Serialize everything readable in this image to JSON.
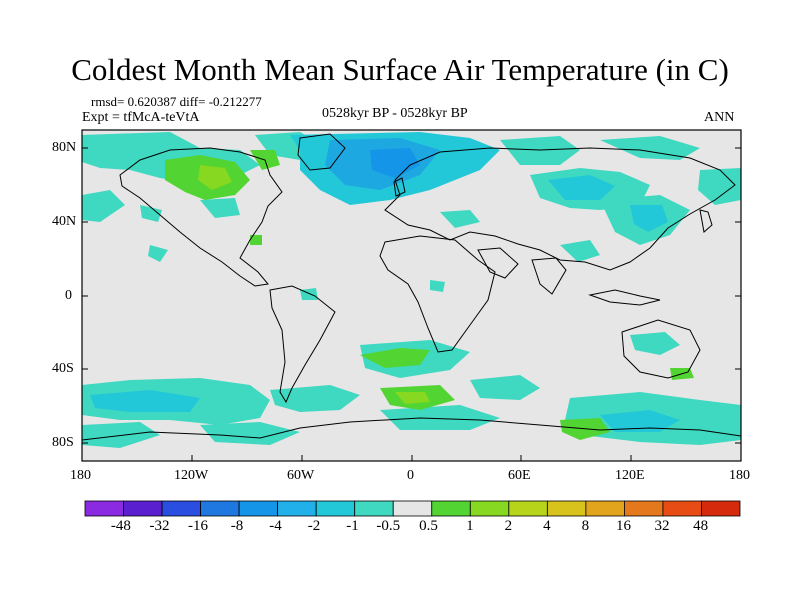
{
  "title": "Coldest Month Mean Surface Air Temperature (in C)",
  "stats": "rmsd= 0.620387 diff= -0.212277",
  "experiment": "Expt = tfMcA-teVtA",
  "period": "0528kyr BP - 0528kyr BP",
  "season": "ANN",
  "lat_ticks": [
    "80N",
    "40N",
    "0",
    "40S",
    "80S"
  ],
  "lon_ticks": [
    "180",
    "120W",
    "60W",
    "0",
    "60E",
    "120E",
    "180"
  ],
  "colorbar": {
    "labels": [
      "-48",
      "-32",
      "-16",
      "-8",
      "-4",
      "-2",
      "-1",
      "-0.5",
      "0.5",
      "1",
      "2",
      "4",
      "8",
      "16",
      "32",
      "48"
    ],
    "colors": [
      "#8a2be2",
      "#5a20d0",
      "#2a4ee0",
      "#1e78e0",
      "#1495e8",
      "#22b0ea",
      "#23c8d8",
      "#3fd8c0",
      "#e6e6e6",
      "#52d432",
      "#86d820",
      "#b8d41a",
      "#d8c21c",
      "#e2a41c",
      "#e4781c",
      "#e64c14",
      "#d62a0c"
    ]
  }
}
